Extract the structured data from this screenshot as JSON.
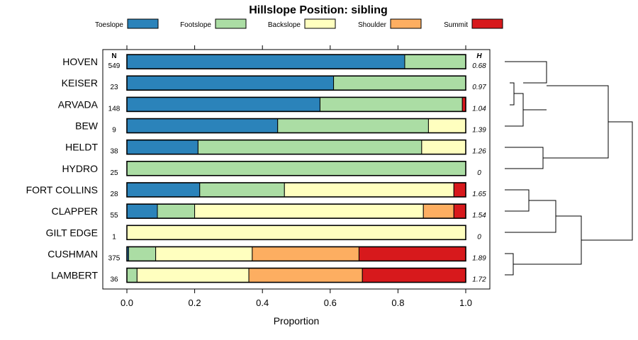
{
  "chart_data": {
    "type": "bar",
    "orientation": "horizontal",
    "stacked": true,
    "title": "Hillslope Position: sibling",
    "xlabel": "Proportion",
    "ylabel": "",
    "xlim": [
      0,
      1
    ],
    "x_ticks": [
      "0.0",
      "0.2",
      "0.4",
      "0.6",
      "0.8",
      "1.0"
    ],
    "x_tick_values": [
      0,
      0.2,
      0.4,
      0.6,
      0.8,
      1.0
    ],
    "n_header": "N",
    "h_header": "H",
    "legend_position": "top",
    "legend": [
      {
        "name": "Toeslope",
        "color": "#2b83ba"
      },
      {
        "name": "Footslope",
        "color": "#abdda4"
      },
      {
        "name": "Backslope",
        "color": "#ffffbf"
      },
      {
        "name": "Shoulder",
        "color": "#fdae61"
      },
      {
        "name": "Summit",
        "color": "#d7191c"
      }
    ],
    "categories": [
      "HOVEN",
      "KEISER",
      "ARVADA",
      "BEW",
      "HELDT",
      "HYDRO",
      "FORT COLLINS",
      "CLAPPER",
      "GILT EDGE",
      "CUSHMAN",
      "LAMBERT"
    ],
    "n": [
      "549",
      "23",
      "148",
      "9",
      "38",
      "25",
      "28",
      "55",
      "1",
      "375",
      "36"
    ],
    "h": [
      "0.68",
      "0.97",
      "1.04",
      "1.39",
      "1.26",
      "0",
      "1.65",
      "1.54",
      "0",
      "1.89",
      "1.72"
    ],
    "series": [
      {
        "name": "Toeslope",
        "values": [
          0.82,
          0.61,
          0.57,
          0.445,
          0.21,
          0.0,
          0.215,
          0.09,
          0.0,
          0.005,
          0.0
        ]
      },
      {
        "name": "Footslope",
        "values": [
          0.18,
          0.39,
          0.42,
          0.445,
          0.66,
          1.0,
          0.25,
          0.11,
          0.0,
          0.08,
          0.03
        ]
      },
      {
        "name": "Backslope",
        "values": [
          0.0,
          0.0,
          0.0,
          0.11,
          0.13,
          0.0,
          0.5,
          0.675,
          1.0,
          0.285,
          0.33
        ]
      },
      {
        "name": "Shoulder",
        "values": [
          0.0,
          0.0,
          0.0,
          0.0,
          0.0,
          0.0,
          0.0,
          0.09,
          0.0,
          0.315,
          0.335
        ]
      },
      {
        "name": "Summit",
        "values": [
          0.0,
          0.0,
          0.01,
          0.0,
          0.0,
          0.0,
          0.035,
          0.035,
          0.0,
          0.315,
          0.305
        ]
      }
    ]
  }
}
